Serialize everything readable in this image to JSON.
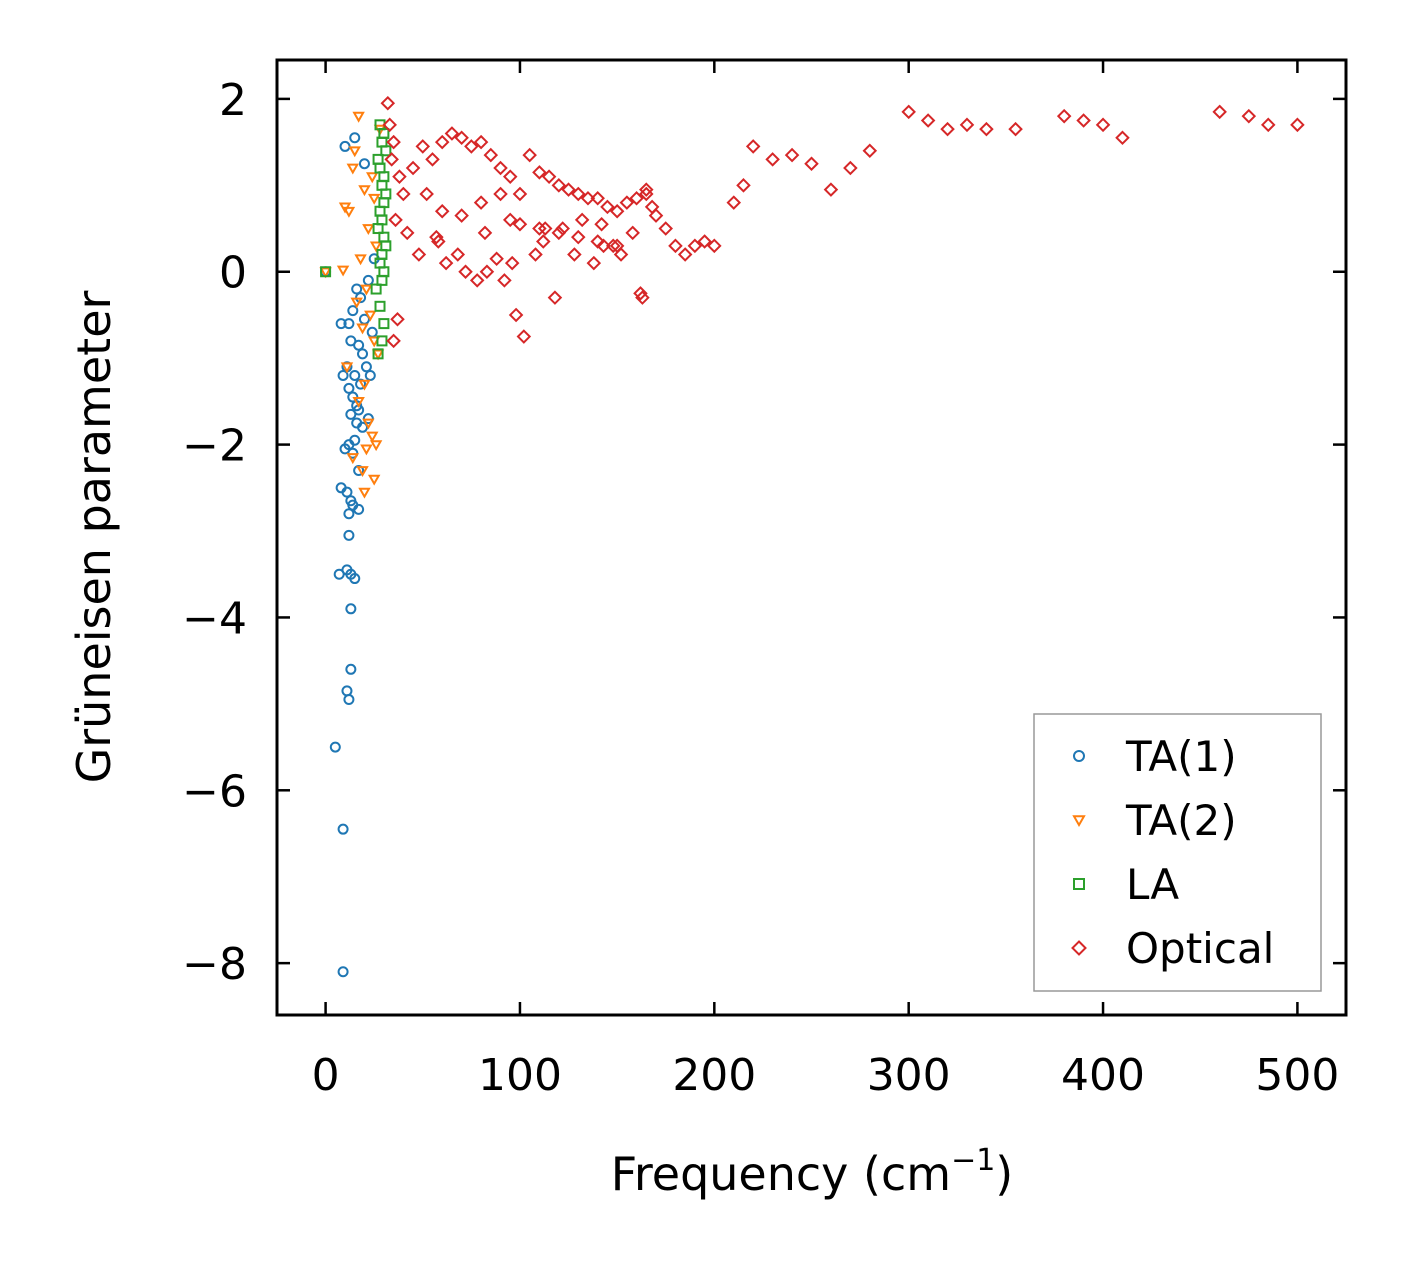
{
  "chart_data": {
    "type": "scatter",
    "title": "",
    "xlabel": "Frequency (cm",
    "xlabel_sup": "−1",
    "xlabel_close": ")",
    "ylabel": "Grüneisen parameter",
    "xlim": [
      -25,
      525
    ],
    "ylim": [
      -8.6,
      2.45
    ],
    "xticks": [
      0,
      100,
      200,
      300,
      400,
      500
    ],
    "xtick_labels": [
      "0",
      "100",
      "200",
      "300",
      "400",
      "500"
    ],
    "yticks": [
      2,
      0,
      -2,
      -4,
      -6,
      -8
    ],
    "ytick_labels": [
      "2",
      "0",
      "−2",
      "−4",
      "−6",
      "−8"
    ],
    "grid": false,
    "legend_position": "lower-right",
    "series": [
      {
        "name": "TA(1)",
        "marker": "circle",
        "color": "#1f77b4",
        "x": [
          0,
          10,
          15,
          20,
          25,
          22,
          18,
          14,
          12,
          16,
          8,
          20,
          24,
          17,
          13,
          19,
          21,
          11,
          15,
          23,
          18,
          12,
          14,
          16,
          17,
          9,
          13,
          16,
          10,
          15,
          19,
          22,
          12,
          14,
          8,
          11,
          13,
          17,
          7,
          11,
          13,
          15,
          12,
          17,
          12,
          14,
          13,
          11,
          12,
          13,
          5,
          9,
          9
        ],
        "y": [
          0,
          1.45,
          1.55,
          1.25,
          0.15,
          -0.1,
          -0.3,
          -0.45,
          -0.6,
          -0.2,
          -0.6,
          -0.55,
          -0.7,
          -0.85,
          -0.8,
          -0.95,
          -1.1,
          -1.1,
          -1.2,
          -1.2,
          -1.3,
          -1.35,
          -1.45,
          -1.55,
          -1.6,
          -1.2,
          -1.65,
          -1.75,
          -2.05,
          -1.95,
          -1.8,
          -1.7,
          -2.0,
          -2.1,
          -2.5,
          -2.55,
          -2.65,
          -2.75,
          -3.5,
          -3.45,
          -3.5,
          -3.55,
          -3.05,
          -2.3,
          -2.8,
          -2.7,
          -3.9,
          -4.85,
          -4.95,
          -4.6,
          -5.5,
          -6.45,
          -8.1
        ]
      },
      {
        "name": "TA(2)",
        "marker": "triangle-down",
        "color": "#ff7f0e",
        "x": [
          0,
          9,
          17,
          14,
          20,
          25,
          12,
          10,
          22,
          26,
          18,
          15,
          24,
          28,
          21,
          16,
          23,
          19,
          25,
          11,
          20,
          27,
          17,
          22,
          24,
          26,
          14,
          19,
          21,
          25,
          20
        ],
        "y": [
          0,
          0.02,
          1.8,
          1.2,
          0.95,
          0.85,
          0.7,
          0.75,
          0.5,
          0.3,
          0.15,
          1.4,
          1.1,
          1.65,
          -0.2,
          -0.35,
          -0.5,
          -0.65,
          -0.8,
          -1.1,
          -1.3,
          -0.95,
          -1.5,
          -1.75,
          -1.9,
          -2.0,
          -2.15,
          -2.3,
          -2.05,
          -2.4,
          -2.55
        ]
      },
      {
        "name": "LA",
        "marker": "square",
        "color": "#2ca02c",
        "x": [
          0,
          28,
          30,
          29,
          31,
          27,
          28,
          30,
          29,
          31,
          30,
          28,
          29,
          27,
          30,
          31,
          29,
          28,
          30,
          29,
          26,
          28,
          30,
          29,
          27
        ],
        "y": [
          0,
          1.7,
          1.6,
          1.5,
          1.4,
          1.3,
          1.2,
          1.1,
          1.0,
          0.9,
          0.8,
          0.7,
          0.6,
          0.5,
          0.4,
          0.3,
          0.2,
          0.1,
          0.0,
          -0.1,
          -0.2,
          -0.4,
          -0.6,
          -0.8,
          -0.95
        ]
      },
      {
        "name": "Optical",
        "marker": "diamond",
        "color": "#d62728",
        "x": [
          32,
          33,
          35,
          34,
          38,
          40,
          45,
          50,
          55,
          60,
          65,
          70,
          75,
          80,
          85,
          90,
          95,
          100,
          105,
          110,
          115,
          120,
          125,
          130,
          135,
          140,
          145,
          150,
          155,
          160,
          165,
          170,
          175,
          180,
          185,
          190,
          195,
          200,
          210,
          215,
          220,
          230,
          240,
          250,
          260,
          270,
          280,
          300,
          310,
          320,
          330,
          340,
          355,
          380,
          390,
          400,
          410,
          460,
          475,
          485,
          500,
          36,
          42,
          48,
          52,
          58,
          62,
          68,
          72,
          78,
          82,
          88,
          92,
          98,
          102,
          108,
          112,
          118,
          122,
          128,
          132,
          138,
          142,
          148,
          152,
          158,
          162,
          168,
          60,
          70,
          80,
          90,
          95,
          100,
          110,
          120,
          130,
          140,
          150,
          165,
          35,
          37,
          57,
          83,
          96,
          113,
          143,
          163
        ],
        "y": [
          1.95,
          1.7,
          1.5,
          1.3,
          1.1,
          0.9,
          1.2,
          1.45,
          1.3,
          1.5,
          1.6,
          1.55,
          1.45,
          1.5,
          1.35,
          1.2,
          1.1,
          0.9,
          1.35,
          1.15,
          1.1,
          1.0,
          0.95,
          0.9,
          0.85,
          0.85,
          0.75,
          0.7,
          0.8,
          0.85,
          0.95,
          0.65,
          0.5,
          0.3,
          0.2,
          0.3,
          0.35,
          0.3,
          0.8,
          1.0,
          1.45,
          1.3,
          1.35,
          1.25,
          0.95,
          1.2,
          1.4,
          1.85,
          1.75,
          1.65,
          1.7,
          1.65,
          1.65,
          1.8,
          1.75,
          1.7,
          1.55,
          1.85,
          1.8,
          1.7,
          1.7,
          0.6,
          0.45,
          0.2,
          0.9,
          0.35,
          0.1,
          0.2,
          0.0,
          -0.1,
          0.45,
          0.15,
          -0.1,
          -0.5,
          -0.75,
          0.2,
          0.35,
          -0.3,
          0.5,
          0.2,
          0.6,
          0.1,
          0.55,
          0.3,
          0.2,
          0.45,
          -0.25,
          0.75,
          0.7,
          0.65,
          0.8,
          0.9,
          0.6,
          0.55,
          0.5,
          0.45,
          0.4,
          0.35,
          0.3,
          0.9,
          -0.8,
          -0.55,
          0.4,
          0.0,
          0.1,
          0.5,
          0.3,
          -0.3
        ]
      }
    ]
  }
}
